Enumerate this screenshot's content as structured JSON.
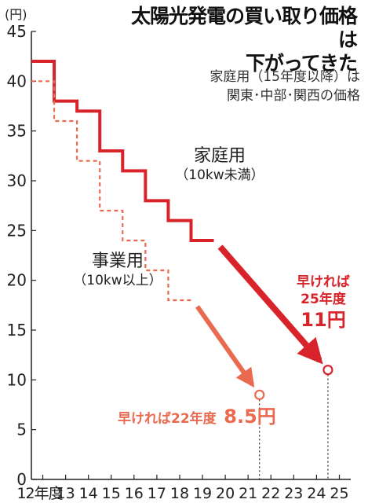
{
  "title_line1": "太陽光発電の買い取り価格は",
  "title_line2": "下がってきた",
  "note_line1": "家庭用（15年度以降）は",
  "note_line2": "関東･中部･関西の価格",
  "chart_data": {
    "type": "line",
    "y_unit": "(円)",
    "ylim": [
      0,
      45
    ],
    "y_ticks": [
      "0",
      "5",
      "10",
      "15",
      "20",
      "25",
      "30",
      "35",
      "40",
      "45"
    ],
    "x_ticks": [
      "12年度",
      "13",
      "14",
      "15",
      "16",
      "17",
      "18",
      "19",
      "20",
      "21",
      "22",
      "23",
      "24",
      "25"
    ],
    "x_values": [
      12,
      13,
      14,
      15,
      16,
      17,
      18,
      19,
      20,
      21,
      22,
      23,
      24,
      25
    ],
    "series": [
      {
        "name": "家庭用",
        "sub": "（10kw未満）",
        "color": "#d8232a",
        "style": "solid step",
        "steps": [
          [
            12,
            42
          ],
          [
            13,
            38
          ],
          [
            14,
            37
          ],
          [
            15,
            33
          ],
          [
            16,
            31
          ],
          [
            17,
            28
          ],
          [
            18,
            26
          ],
          [
            19,
            24
          ]
        ],
        "end_x": 20,
        "target": {
          "x": 24.5,
          "y": 11,
          "label1": "早ければ",
          "label2": "25年度",
          "label3": "11円"
        }
      },
      {
        "name": "事業用",
        "sub": "（10kw以上）",
        "color": "#ea6a50",
        "style": "dashed step",
        "steps": [
          [
            12,
            40
          ],
          [
            13,
            36
          ],
          [
            14,
            32
          ],
          [
            15,
            27
          ],
          [
            16,
            24
          ],
          [
            17,
            21
          ],
          [
            18,
            18
          ]
        ],
        "end_x": 19,
        "target": {
          "x": 21.5,
          "y": 8.5,
          "label1": "早ければ22年度",
          "label3": "8.5円"
        }
      }
    ]
  }
}
